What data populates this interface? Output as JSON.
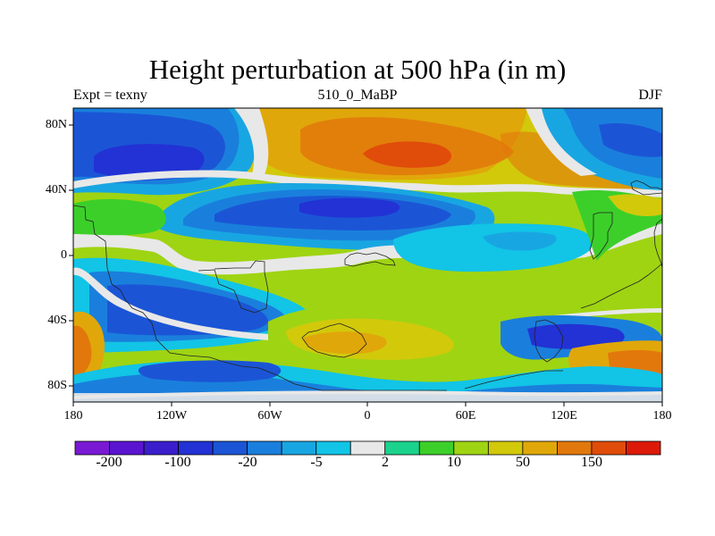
{
  "header": {
    "title": "Height perturbation at 500 hPa (in m)",
    "left_string": "Expt = texny",
    "center_string": "510_0_MaBP",
    "right_string": "DJF"
  },
  "axes": {
    "x_ticks": [
      "180",
      "120W",
      "60W",
      "0",
      "60E",
      "120E",
      "180"
    ],
    "y_ticks": [
      "80N",
      "40N",
      "0",
      "40S",
      "80S"
    ]
  },
  "colorbar": {
    "labels": [
      "-200",
      "-100",
      "-20",
      "-5",
      "2",
      "10",
      "50",
      "150"
    ],
    "colors": [
      "#7a19d4",
      "#5a14d0",
      "#3a1ecb",
      "#2232d4",
      "#1b55d6",
      "#1a7fdc",
      "#18a6e2",
      "#12c4e6",
      "#e8e8e8",
      "#1bd38c",
      "#3ccf2a",
      "#9fd413",
      "#d2c90b",
      "#e0a70a",
      "#e2780c",
      "#e04c0a",
      "#dd1a0a"
    ]
  },
  "chart_data": {
    "type": "heatmap",
    "title": "Height perturbation at 500 hPa (in m)",
    "left_string": "Expt = texny",
    "center_string": "510_0_MaBP",
    "right_string": "DJF",
    "projection": "cylindrical equidistant",
    "lon_range": [
      -180,
      180
    ],
    "lat_range": [
      -90,
      90
    ],
    "x_ticks": [
      "180",
      "120W",
      "60W",
      "0",
      "60E",
      "120E",
      "180"
    ],
    "y_ticks": [
      "80N",
      "40N",
      "0",
      "40S",
      "80S"
    ],
    "colorbar_labels": [
      "-200",
      "-100",
      "-20",
      "-5",
      "2",
      "10",
      "50",
      "150"
    ],
    "features": [
      {
        "name": "north-pacific-low",
        "lon": -140,
        "lat": 60,
        "value": -100
      },
      {
        "name": "north-atlantic-high",
        "lon": 10,
        "lat": 65,
        "value": 150
      },
      {
        "name": "eurasia-high",
        "lon": 60,
        "lat": 65,
        "value": 50
      },
      {
        "name": "arctic-canada-low",
        "lon": 175,
        "lat": 60,
        "value": -20
      },
      {
        "name": "atlantic-low",
        "lon": -10,
        "lat": 32,
        "value": -50
      },
      {
        "name": "west-pacific-high",
        "lon": 160,
        "lat": 30,
        "value": 50
      },
      {
        "name": "indian-ocean-high",
        "lon": 60,
        "lat": -15,
        "value": 20
      },
      {
        "name": "south-america-low",
        "lon": -70,
        "lat": -25,
        "value": -20
      },
      {
        "name": "south-atlantic-high",
        "lon": -10,
        "lat": -55,
        "value": 50
      },
      {
        "name": "australia-low",
        "lon": 120,
        "lat": -55,
        "value": -50
      },
      {
        "name": "southern-ocean-high",
        "lon": 165,
        "lat": -60,
        "value": 50
      },
      {
        "name": "south-pacific-high",
        "lon": -170,
        "lat": -60,
        "value": 50
      }
    ]
  }
}
